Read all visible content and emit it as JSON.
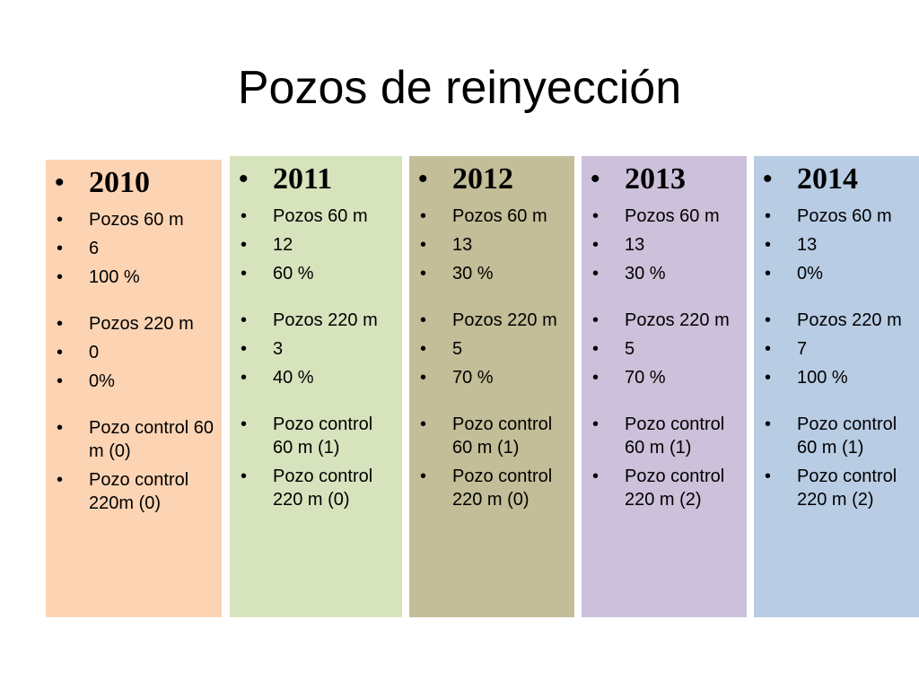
{
  "title": "Pozos de reinyección",
  "columns": [
    {
      "year": "2010",
      "items": [
        "Pozos 60 m",
        "6",
        "100 %",
        "Pozos 220 m",
        "0",
        "0%",
        "Pozo control 60 m (0)",
        "Pozo control 220m (0)"
      ]
    },
    {
      "year": "2011",
      "items": [
        "Pozos 60 m",
        "12",
        "60 %",
        "Pozos 220 m",
        "3",
        "40 %",
        "Pozo control 60 m (1)",
        "Pozo control 220 m (0)"
      ]
    },
    {
      "year": "2012",
      "items": [
        "Pozos 60 m",
        "13",
        "30 %",
        "Pozos 220 m",
        "5",
        "70 %",
        "Pozo control 60 m (1)",
        "Pozo control 220 m (0)"
      ]
    },
    {
      "year": "2013",
      "items": [
        "Pozos 60 m",
        "13",
        "30 %",
        "Pozos 220 m",
        "5",
        "70 %",
        "Pozo control 60 m (1)",
        "Pozo control 220 m (2)"
      ]
    },
    {
      "year": "2014",
      "items": [
        "Pozos 60 m",
        "13",
        "0%",
        "Pozos 220 m",
        "7",
        "100 %",
        "Pozo control 60 m (1)",
        "Pozo control 220 m (2)"
      ]
    }
  ],
  "colors": {
    "2010": "#fcd4b4",
    "2011": "#d7e3bd",
    "2012": "#c3bd98",
    "2013": "#ccc0da",
    "2014": "#b8cce4"
  }
}
